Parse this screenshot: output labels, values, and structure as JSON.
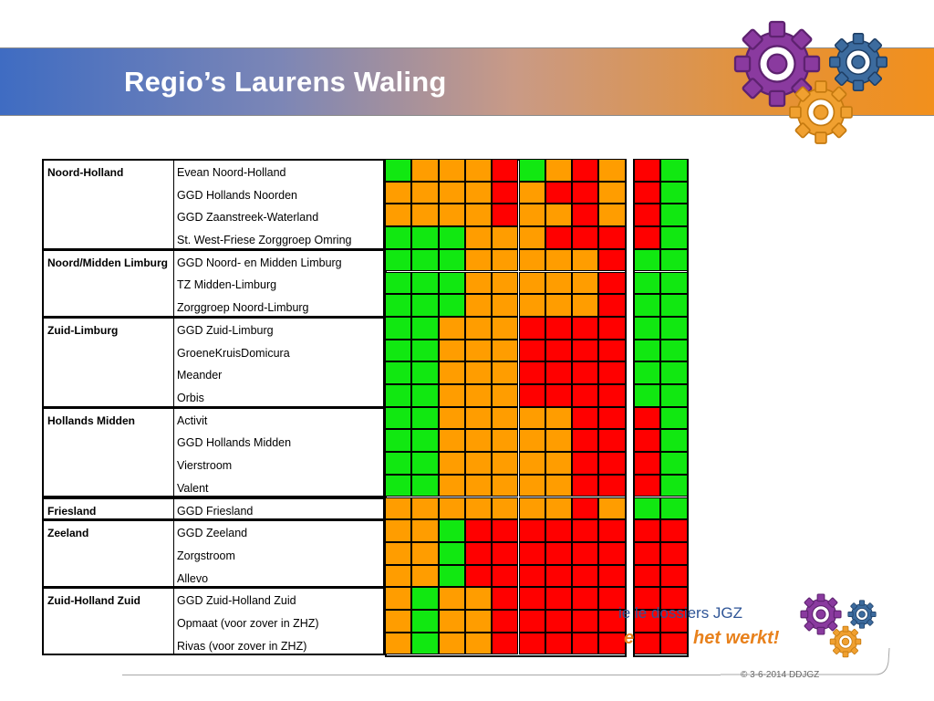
{
  "slide": {
    "title": "Regio’s Laurens Waling",
    "copyright": "© 3-6-2014 DDJGZ",
    "logo_line1": "ie       le dossiers JGZ",
    "logo_line2a": "e",
    "logo_line2b": "het werkt!"
  },
  "colors": {
    "G": "#11e811",
    "O": "#ff9d00",
    "R": "#ff0000",
    "banner_start": "#3f6cc2",
    "banner_end": "#f2901c",
    "title": "#ffffff"
  },
  "regions": [
    {
      "name": "Noord-Holland",
      "rows": [
        {
          "org": "Evean Noord-Holland",
          "a": "GOOORGORO",
          "b": "RG"
        },
        {
          "org": "GGD Hollands Noorden",
          "a": "OOOORORRO",
          "b": "RG"
        },
        {
          "org": "GGD Zaanstreek-Waterland",
          "a": "OOOOROORO",
          "b": "RG"
        },
        {
          "org": "St. West-Friese Zorggroep Omring",
          "a": "GGGOOORRR",
          "b": "RG"
        }
      ]
    },
    {
      "name": "Noord/Midden Limburg",
      "rows": [
        {
          "org": "GGD Noord- en Midden Limburg",
          "a": "GGGOOOOOR",
          "b": "GG"
        },
        {
          "org": "TZ Midden-Limburg",
          "a": "GGGOOOOOR",
          "b": "GG"
        },
        {
          "org": "Zorggroep Noord-Limburg",
          "a": "GGGOOOOOR",
          "b": "GG"
        }
      ]
    },
    {
      "name": "Zuid-Limburg",
      "rows": [
        {
          "org": "GGD Zuid-Limburg",
          "a": "GGOOORRRR",
          "b": "GG"
        },
        {
          "org": "GroeneKruisDomicura",
          "a": "GGOOORRRR",
          "b": "GG"
        },
        {
          "org": "Meander",
          "a": "GGOOORRRR",
          "b": "GG"
        },
        {
          "org": "Orbis",
          "a": "GGOOORRRR",
          "b": "GG"
        }
      ]
    },
    {
      "name": "Hollands Midden",
      "rows": [
        {
          "org": "Activit",
          "a": "GGOOOOORR",
          "b": "RG"
        },
        {
          "org": "GGD Hollands Midden",
          "a": "GGOOOOORR",
          "b": "RG"
        },
        {
          "org": "Vierstroom",
          "a": "GGOOOOORR",
          "b": "RG"
        },
        {
          "org": "Valent",
          "a": "GGOOOOORR",
          "b": "RG"
        }
      ]
    },
    {
      "name": "Friesland",
      "rows": [
        {
          "org": "GGD Friesland",
          "a": "OOOOOOORO",
          "b": "GG"
        }
      ]
    },
    {
      "name": "Zeeland",
      "rows": [
        {
          "org": "GGD Zeeland",
          "a": "OOGRRRRRR",
          "b": "RR"
        },
        {
          "org": "Zorgstroom",
          "a": "OOGRRRRRR",
          "b": "RR"
        },
        {
          "org": "Allevo",
          "a": "OOGRRRRRR",
          "b": "RR"
        }
      ]
    },
    {
      "name": "Zuid-Holland Zuid",
      "rows": [
        {
          "org": "GGD Zuid-Holland Zuid",
          "a": "OGOORRRRR",
          "b": "RR"
        },
        {
          "org": "Opmaat (voor zover in ZHZ)",
          "a": "OGOORRRRR",
          "b": "RR"
        },
        {
          "org": "Rivas (voor zover in ZHZ)",
          "a": "OGOORRRRR",
          "b": "RR"
        }
      ]
    }
  ]
}
